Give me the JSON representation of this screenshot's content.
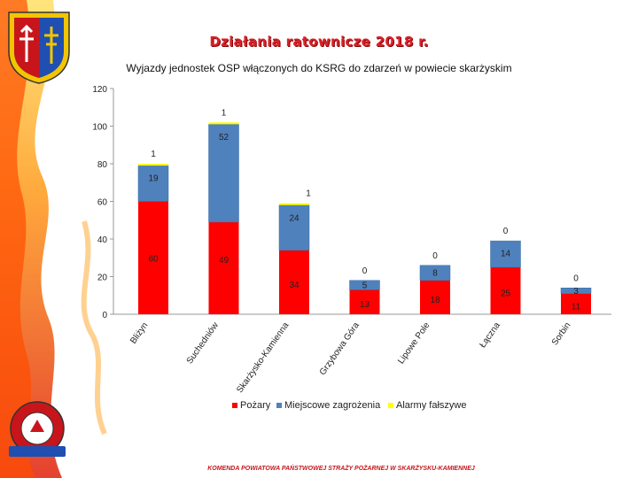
{
  "header": {
    "title": "Działania ratownicze 2018 r.",
    "subtitle": "Wyjazdy jednostek OSP włączonych do KSRG do zdarzeń w powiecie skarżyskim"
  },
  "footer": {
    "text": "KOMENDA POWIATOWA PAŃSTWOWEJ STRAŻY POŻARNEJ W SKARŻYSKU-KAMIENNEJ"
  },
  "logos": {
    "psp_text": "PAŃSTWOWA STRAŻ POŻARNA"
  },
  "chart_data": {
    "type": "bar",
    "stacked": true,
    "categories": [
      "Bliżyn",
      "Suchedniów",
      "Skarżysko-Kamienna",
      "Grzybowa Góra",
      "Lipowe Pole",
      "Łączna",
      "Sorbin"
    ],
    "series": [
      {
        "name": "Pożary",
        "color": "#ff0000",
        "values": [
          60,
          49,
          34,
          13,
          18,
          25,
          11
        ]
      },
      {
        "name": "Miejscowe zagrożenia",
        "color": "#4f81bd",
        "values": [
          19,
          52,
          24,
          5,
          8,
          14,
          3
        ]
      },
      {
        "name": "Alarmy fałszywe",
        "color": "#ffff00",
        "values": [
          1,
          1,
          1,
          0,
          0,
          0,
          0
        ]
      }
    ],
    "ylim": [
      0,
      120
    ],
    "yticks": [
      0,
      20,
      40,
      60,
      80,
      100,
      120
    ],
    "grid": false,
    "legend": "bottom",
    "xlabel": "",
    "ylabel": ""
  }
}
